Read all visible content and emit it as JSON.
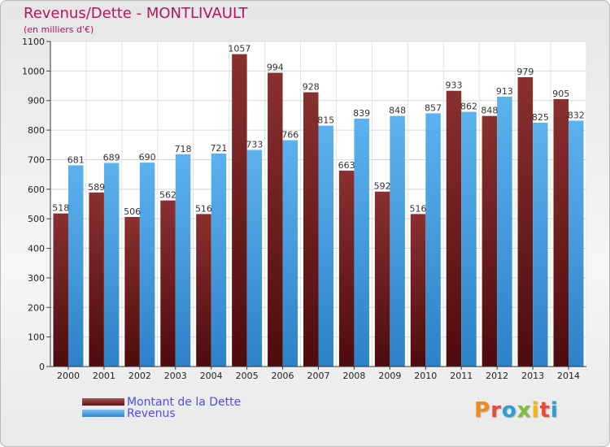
{
  "header": {
    "title": "Revenus/Dette - MONTLIVAULT",
    "subtitle": "(en milliers d'€)"
  },
  "brand": {
    "name": "Proxiti",
    "letter_colors": [
      "#f08a1e",
      "#e84b3a",
      "#2a9fd6",
      "#7cbf3b",
      "#f2b705",
      "#e84b3a",
      "#2a9fd6"
    ]
  },
  "colors": {
    "dette": "#7f2a2a",
    "revenus": "#4aa3e8",
    "title": "#b0185a",
    "legend_text": "#4e4ee8"
  },
  "chart_data": {
    "type": "bar",
    "title": "Revenus/Dette - MONTLIVAULT",
    "ylabel": "(en milliers d'€)",
    "ylim": [
      0,
      1100
    ],
    "yticks": [
      0,
      100,
      200,
      300,
      400,
      500,
      600,
      700,
      800,
      900,
      1000,
      1100
    ],
    "grid": true,
    "legend_position": "bottom-left",
    "categories": [
      "2000",
      "2001",
      "2002",
      "2003",
      "2004",
      "2005",
      "2006",
      "2007",
      "2008",
      "2009",
      "2010",
      "2011",
      "2012",
      "2013",
      "2014"
    ],
    "series": [
      {
        "name": "Montant de la Dette",
        "color": "#7f2a2a",
        "values": [
          518,
          589,
          506,
          562,
          516,
          1057,
          994,
          928,
          663,
          592,
          516,
          933,
          848,
          979,
          905
        ]
      },
      {
        "name": "Revenus",
        "color": "#4aa3e8",
        "values": [
          681,
          689,
          690,
          718,
          721,
          733,
          766,
          815,
          839,
          848,
          857,
          862,
          913,
          825,
          832
        ]
      }
    ]
  }
}
